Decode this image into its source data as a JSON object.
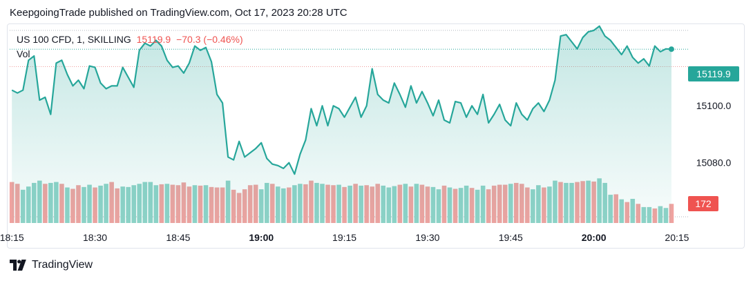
{
  "header": {
    "publisher_line": "KeepgoingTrade published on TradingView.com, Oct 17, 2023 20:28 UTC"
  },
  "legend": {
    "symbol": "US 100 CFD, 1, SKILLING",
    "last": "15119.9",
    "change": "−70.3 (−0.46%)",
    "vol_label": "Vol"
  },
  "colors": {
    "line": "#26a69a",
    "up_volume": "#8fd3c8",
    "down_volume": "#f0a3a0",
    "price_badge": "#26a69a",
    "volume_badge": "#ef5350"
  },
  "footer": {
    "brand": "TradingView",
    "logo_icon": "tradingview-logo-icon"
  },
  "chart_data": {
    "type": "area",
    "price_axis": {
      "ticks": [
        15080.0,
        15100.0
      ],
      "range": [
        15061,
        15126.5
      ]
    },
    "time_axis": {
      "labels": [
        {
          "t": 0,
          "label": "18:15",
          "bold": false
        },
        {
          "t": 15,
          "label": "18:30",
          "bold": false
        },
        {
          "t": 30,
          "label": "18:45",
          "bold": false
        },
        {
          "t": 45,
          "label": "19:00",
          "bold": true
        },
        {
          "t": 60,
          "label": "19:15",
          "bold": false
        },
        {
          "t": 75,
          "label": "19:30",
          "bold": false
        },
        {
          "t": 90,
          "label": "19:45",
          "bold": false
        },
        {
          "t": 105,
          "label": "20:00",
          "bold": true
        },
        {
          "t": 120,
          "label": "20:15",
          "bold": false
        }
      ],
      "t_range": [
        -0.4,
        122
      ]
    },
    "last_price_label": "15119.9",
    "last_volume_label": "172",
    "close": [
      15105.5,
      15104.5,
      15105.5,
      15116,
      15117.5,
      15102,
      15103,
      15097,
      15115,
      15116,
      15111,
      15107,
      15109,
      15106,
      15114,
      15113.5,
      15108,
      15106,
      15107,
      15107,
      15113.5,
      15110,
      15106.5,
      15119.5,
      15122,
      15121,
      15123,
      15121,
      15116,
      15113.5,
      15114,
      15111.5,
      15115,
      15121,
      15119.5,
      15120.5,
      15115.5,
      15104,
      15101,
      15082,
      15081,
      15087.5,
      15082,
      15083.5,
      15085,
      15087,
      15081.5,
      15079.5,
      15079,
      15078,
      15080,
      15076,
      15083,
      15088,
      15099,
      15093,
      15100,
      15093,
      15100,
      15099,
      15096,
      15099.5,
      15103,
      15096,
      15100,
      15113,
      15104,
      15102,
      15101,
      15108,
      15104,
      15099.5,
      15107,
      15101,
      15105,
      15101,
      15096.5,
      15102,
      15095,
      15094,
      15101.5,
      15101,
      15096,
      15100,
      15097,
      15104,
      15094,
      15097,
      15100.5,
      15095,
      15093,
      15101,
      15097,
      15095,
      15099,
      15101,
      15098,
      15102,
      15109,
      15124.5,
      15125,
      15122.5,
      15120,
      15124,
      15126,
      15126.5,
      15128,
      15124.5,
      15123,
      15120.5,
      15118,
      15121,
      15117,
      15115,
      15116.5,
      15114,
      15121,
      15119,
      15120,
      15119.9
    ],
    "volume": [
      {
        "v": 0.9,
        "up": false
      },
      {
        "v": 0.86,
        "up": false
      },
      {
        "v": 0.73,
        "up": true
      },
      {
        "v": 0.8,
        "up": true
      },
      {
        "v": 0.88,
        "up": true
      },
      {
        "v": 0.93,
        "up": true
      },
      {
        "v": 0.86,
        "up": false
      },
      {
        "v": 0.88,
        "up": true
      },
      {
        "v": 0.9,
        "up": true
      },
      {
        "v": 0.86,
        "up": false
      },
      {
        "v": 0.78,
        "up": true
      },
      {
        "v": 0.75,
        "up": false
      },
      {
        "v": 0.83,
        "up": false
      },
      {
        "v": 0.79,
        "up": true
      },
      {
        "v": 0.84,
        "up": true
      },
      {
        "v": 0.78,
        "up": false
      },
      {
        "v": 0.82,
        "up": true
      },
      {
        "v": 0.86,
        "up": true
      },
      {
        "v": 0.9,
        "up": false
      },
      {
        "v": 0.76,
        "up": false
      },
      {
        "v": 0.8,
        "up": true
      },
      {
        "v": 0.79,
        "up": true
      },
      {
        "v": 0.83,
        "up": true
      },
      {
        "v": 0.86,
        "up": true
      },
      {
        "v": 0.9,
        "up": true
      },
      {
        "v": 0.9,
        "up": true
      },
      {
        "v": 0.83,
        "up": true
      },
      {
        "v": 0.85,
        "up": false
      },
      {
        "v": 0.86,
        "up": true
      },
      {
        "v": 0.84,
        "up": false
      },
      {
        "v": 0.83,
        "up": false
      },
      {
        "v": 0.89,
        "up": false
      },
      {
        "v": 0.8,
        "up": false
      },
      {
        "v": 0.83,
        "up": true
      },
      {
        "v": 0.82,
        "up": false
      },
      {
        "v": 0.83,
        "up": true
      },
      {
        "v": 0.79,
        "up": false
      },
      {
        "v": 0.78,
        "up": false
      },
      {
        "v": 0.78,
        "up": false
      },
      {
        "v": 0.93,
        "up": true
      },
      {
        "v": 0.73,
        "up": false
      },
      {
        "v": 0.66,
        "up": false
      },
      {
        "v": 0.74,
        "up": false
      },
      {
        "v": 0.83,
        "up": false
      },
      {
        "v": 0.84,
        "up": false
      },
      {
        "v": 0.74,
        "up": true
      },
      {
        "v": 0.88,
        "up": true
      },
      {
        "v": 0.86,
        "up": false
      },
      {
        "v": 0.8,
        "up": true
      },
      {
        "v": 0.76,
        "up": true
      },
      {
        "v": 0.78,
        "up": false
      },
      {
        "v": 0.83,
        "up": true
      },
      {
        "v": 0.86,
        "up": true
      },
      {
        "v": 0.85,
        "up": false
      },
      {
        "v": 0.93,
        "up": false
      },
      {
        "v": 0.88,
        "up": true
      },
      {
        "v": 0.86,
        "up": true
      },
      {
        "v": 0.84,
        "up": false
      },
      {
        "v": 0.83,
        "up": false
      },
      {
        "v": 0.84,
        "up": true
      },
      {
        "v": 0.79,
        "up": false
      },
      {
        "v": 0.82,
        "up": true
      },
      {
        "v": 0.86,
        "up": false
      },
      {
        "v": 0.82,
        "up": true
      },
      {
        "v": 0.83,
        "up": false
      },
      {
        "v": 0.8,
        "up": false
      },
      {
        "v": 0.86,
        "up": false
      },
      {
        "v": 0.82,
        "up": true
      },
      {
        "v": 0.78,
        "up": true
      },
      {
        "v": 0.81,
        "up": true
      },
      {
        "v": 0.84,
        "up": false
      },
      {
        "v": 0.86,
        "up": true
      },
      {
        "v": 0.8,
        "up": false
      },
      {
        "v": 0.86,
        "up": true
      },
      {
        "v": 0.84,
        "up": false
      },
      {
        "v": 0.8,
        "up": false
      },
      {
        "v": 0.79,
        "up": true
      },
      {
        "v": 0.74,
        "up": true
      },
      {
        "v": 0.82,
        "up": false
      },
      {
        "v": 0.78,
        "up": true
      },
      {
        "v": 0.75,
        "up": false
      },
      {
        "v": 0.77,
        "up": true
      },
      {
        "v": 0.82,
        "up": true
      },
      {
        "v": 0.77,
        "up": false
      },
      {
        "v": 0.73,
        "up": true
      },
      {
        "v": 0.82,
        "up": true
      },
      {
        "v": 0.74,
        "up": false
      },
      {
        "v": 0.82,
        "up": false
      },
      {
        "v": 0.84,
        "up": false
      },
      {
        "v": 0.84,
        "up": false
      },
      {
        "v": 0.86,
        "up": true
      },
      {
        "v": 0.88,
        "up": false
      },
      {
        "v": 0.86,
        "up": false
      },
      {
        "v": 0.78,
        "up": false
      },
      {
        "v": 0.74,
        "up": true
      },
      {
        "v": 0.83,
        "up": true
      },
      {
        "v": 0.78,
        "up": false
      },
      {
        "v": 0.8,
        "up": true
      },
      {
        "v": 0.93,
        "up": true
      },
      {
        "v": 0.9,
        "up": false
      },
      {
        "v": 0.88,
        "up": true
      },
      {
        "v": 0.88,
        "up": true
      },
      {
        "v": 0.9,
        "up": false
      },
      {
        "v": 0.92,
        "up": false
      },
      {
        "v": 0.93,
        "up": true
      },
      {
        "v": 0.91,
        "up": false
      },
      {
        "v": 0.98,
        "up": true
      },
      {
        "v": 0.88,
        "up": true
      },
      {
        "v": 0.62,
        "up": true
      },
      {
        "v": 0.63,
        "up": false
      },
      {
        "v": 0.52,
        "up": true
      },
      {
        "v": 0.46,
        "up": false
      },
      {
        "v": 0.53,
        "up": true
      },
      {
        "v": 0.42,
        "up": false
      },
      {
        "v": 0.35,
        "up": true
      },
      {
        "v": 0.35,
        "up": true
      },
      {
        "v": 0.32,
        "up": false
      },
      {
        "v": 0.37,
        "up": true
      },
      {
        "v": 0.33,
        "up": true
      },
      {
        "v": 0.42,
        "up": false
      }
    ]
  }
}
